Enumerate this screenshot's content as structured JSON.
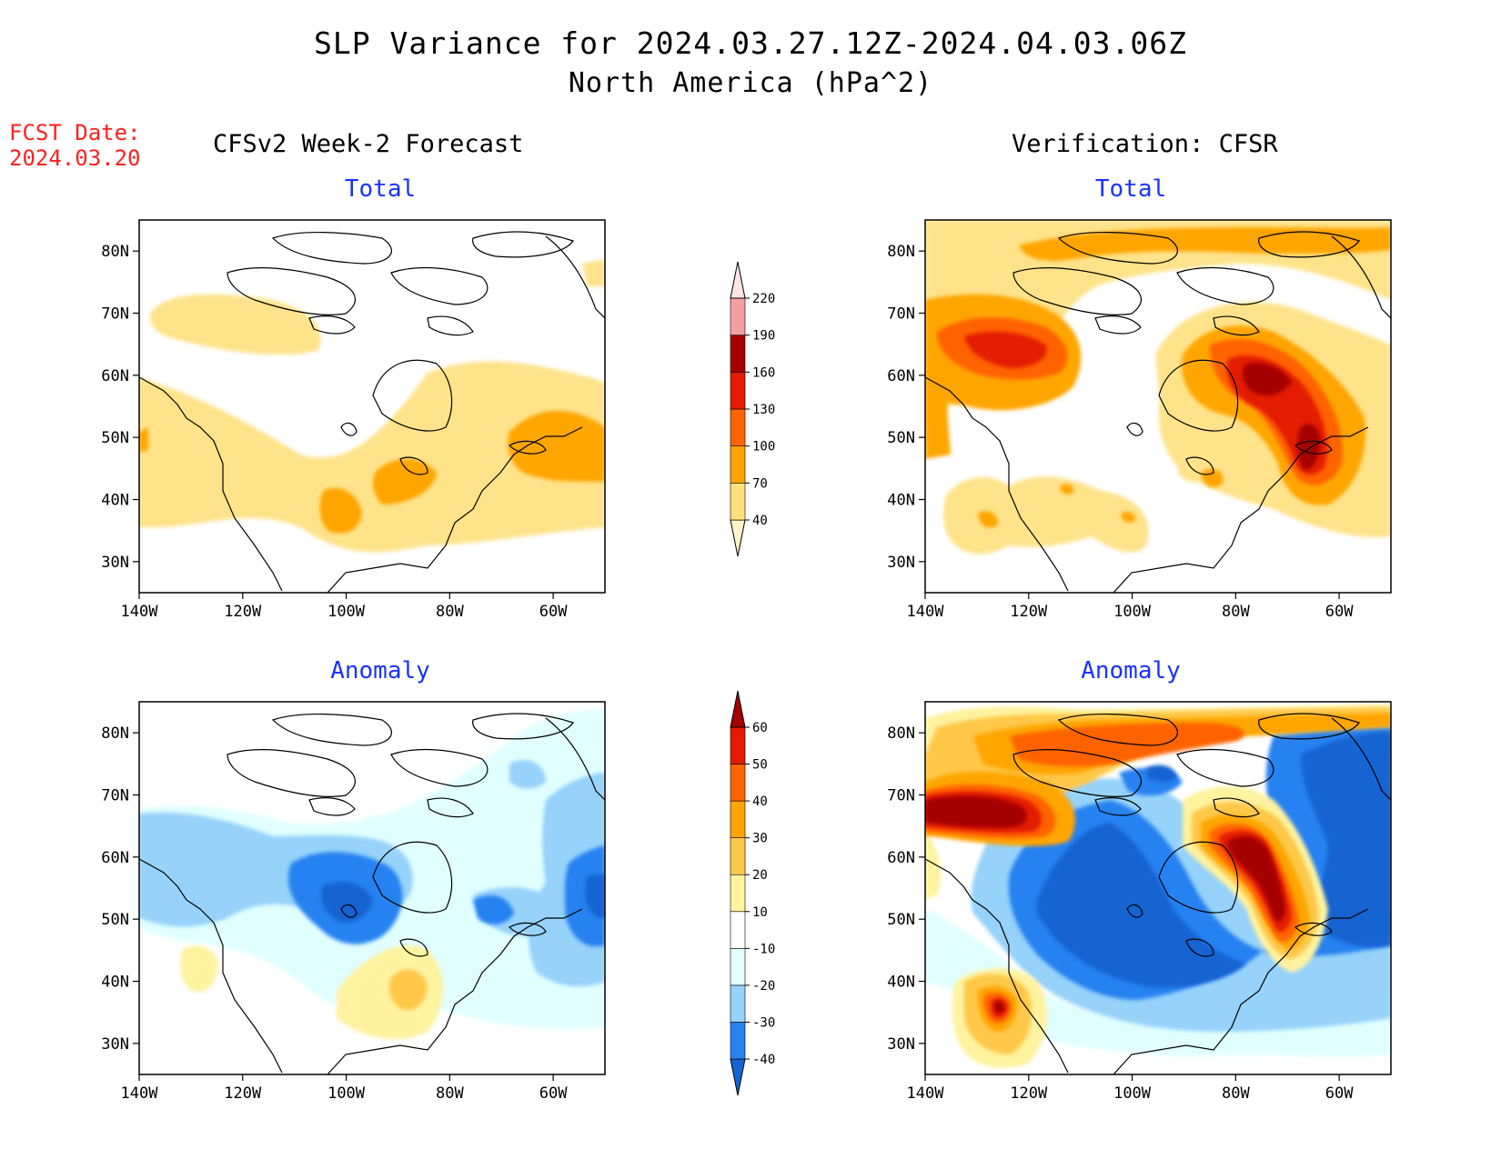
{
  "title": "SLP Variance for 2024.03.27.12Z-2024.04.03.06Z",
  "subtitle": "North America (hPa^2)",
  "fcst": {
    "label": "FCST Date:",
    "date": "2024.03.20"
  },
  "columns": {
    "left": "CFSv2 Week-2 Forecast",
    "right": "Verification: CFSR"
  },
  "panel_titles": {
    "top_left": "Total",
    "top_right": "Total",
    "bottom_left": "Anomaly",
    "bottom_right": "Anomaly"
  },
  "axes": {
    "lat_ticks": [
      "80N",
      "70N",
      "60N",
      "50N",
      "40N",
      "30N"
    ],
    "lat_values": [
      80,
      70,
      60,
      50,
      40,
      30
    ],
    "lon_ticks": [
      "140W",
      "120W",
      "100W",
      "80W",
      "60W"
    ],
    "lon_values": [
      -140,
      -120,
      -100,
      -80,
      -60
    ],
    "lon_range": [
      -140,
      -50
    ],
    "lat_range": [
      25,
      85
    ]
  },
  "colorbars": {
    "total": {
      "labels": [
        "40",
        "70",
        "100",
        "130",
        "160",
        "190",
        "220"
      ],
      "colors": [
        "#fff3c8",
        "#ffe17c",
        "#ffa500",
        "#ff6400",
        "#e41b00",
        "#a50000",
        "#f2a0a0",
        "#ffe4e4"
      ]
    },
    "anomaly": {
      "labels": [
        "-40",
        "-30",
        "-20",
        "-10",
        "10",
        "20",
        "30",
        "40",
        "50",
        "60"
      ],
      "colors": [
        "#1464d2",
        "#2882f0",
        "#96d2fa",
        "#e1ffff",
        "#ffffff",
        "#fff3a0",
        "#ffc84a",
        "#ffa500",
        "#ff6400",
        "#e41b00",
        "#a50000"
      ]
    }
  },
  "colors": {
    "total_scale": [
      "#ffe38a",
      "#ffa500",
      "#ff6400",
      "#e41b00",
      "#a50000"
    ],
    "anomaly_neg": [
      "#e1ffff",
      "#96d2fa",
      "#2882f0",
      "#1464d2"
    ],
    "anomaly_pos": [
      "#fff3a0",
      "#ffc84a",
      "#ffa500",
      "#ff6400",
      "#e41b00",
      "#a50000"
    ]
  }
}
